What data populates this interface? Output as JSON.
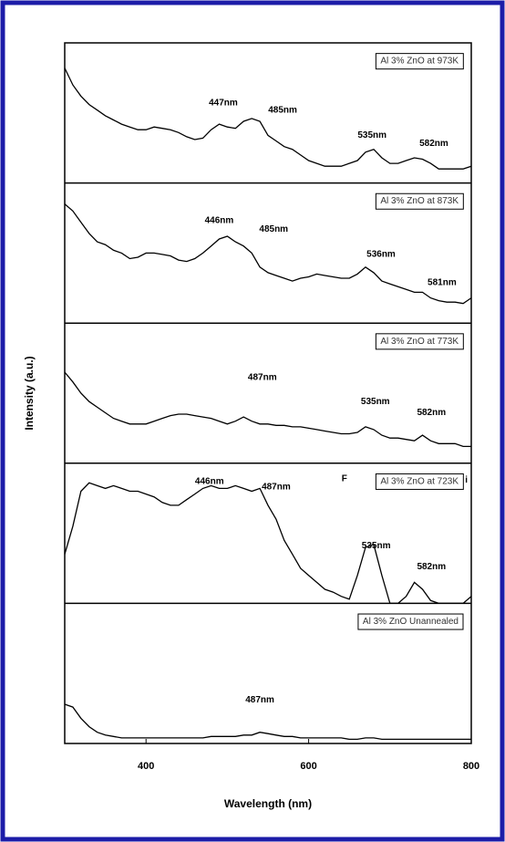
{
  "chart_data": {
    "type": "line",
    "xlabel": "Wavelength (nm)",
    "ylabel": "Intensity (a.u.)",
    "xlim": [
      300,
      800
    ],
    "xticks": [
      400,
      600,
      800
    ],
    "ylim": [
      0,
      100
    ],
    "x": [
      300,
      310,
      320,
      330,
      340,
      350,
      360,
      370,
      380,
      390,
      400,
      410,
      420,
      430,
      440,
      450,
      460,
      470,
      480,
      490,
      500,
      510,
      520,
      530,
      540,
      550,
      560,
      570,
      580,
      590,
      600,
      610,
      620,
      630,
      640,
      650,
      660,
      670,
      680,
      690,
      700,
      710,
      720,
      730,
      740,
      750,
      760,
      770,
      780,
      790,
      800
    ],
    "series": [
      {
        "name": "Al 3% ZnO at 973K",
        "color": "#000000",
        "values": [
          82,
          70,
          62,
          56,
          52,
          48,
          45,
          42,
          40,
          38,
          38,
          40,
          39,
          38,
          36,
          33,
          31,
          32,
          38,
          42,
          40,
          39,
          44,
          46,
          44,
          34,
          30,
          26,
          24,
          20,
          16,
          14,
          12,
          12,
          12,
          14,
          16,
          22,
          24,
          18,
          14,
          14,
          16,
          18,
          17,
          14,
          10,
          10,
          10,
          10,
          12
        ],
        "annotations": [
          {
            "text": "447nm",
            "x": 495,
            "y": 57
          },
          {
            "text": "485nm",
            "x": 568,
            "y": 52
          },
          {
            "text": "535nm",
            "x": 678,
            "y": 34
          },
          {
            "text": "582nm",
            "x": 754,
            "y": 28
          }
        ]
      },
      {
        "name": "Al 3% ZnO at 873K",
        "color": "#000000",
        "values": [
          85,
          80,
          72,
          64,
          58,
          56,
          52,
          50,
          46,
          47,
          50,
          50,
          49,
          48,
          45,
          44,
          46,
          50,
          55,
          60,
          62,
          58,
          55,
          50,
          40,
          36,
          34,
          32,
          30,
          32,
          33,
          35,
          34,
          33,
          32,
          32,
          35,
          40,
          36,
          30,
          28,
          26,
          24,
          22,
          22,
          18,
          16,
          15,
          15,
          14,
          18
        ],
        "annotations": [
          {
            "text": "446nm",
            "x": 490,
            "y": 73
          },
          {
            "text": "485nm",
            "x": 557,
            "y": 67
          },
          {
            "text": "536nm",
            "x": 689,
            "y": 49
          },
          {
            "text": "581nm",
            "x": 764,
            "y": 29
          }
        ]
      },
      {
        "name": "Al 3% ZnO at 773K",
        "color": "#000000",
        "values": [
          65,
          58,
          50,
          44,
          40,
          36,
          32,
          30,
          28,
          28,
          28,
          30,
          32,
          34,
          35,
          35,
          34,
          33,
          32,
          30,
          28,
          30,
          33,
          30,
          28,
          28,
          27,
          27,
          26,
          26,
          25,
          24,
          23,
          22,
          21,
          21,
          22,
          26,
          24,
          20,
          18,
          18,
          17,
          16,
          20,
          16,
          14,
          14,
          14,
          12,
          12
        ],
        "annotations": [
          {
            "text": "487nm",
            "x": 543,
            "y": 61
          },
          {
            "text": "535nm",
            "x": 682,
            "y": 44
          },
          {
            "text": "582nm",
            "x": 751,
            "y": 36
          }
        ]
      },
      {
        "name": "Al 3% ZnO at 723K",
        "color": "#000000",
        "values": [
          35,
          55,
          80,
          86,
          84,
          82,
          84,
          82,
          80,
          80,
          78,
          76,
          72,
          70,
          70,
          74,
          78,
          82,
          84,
          82,
          82,
          84,
          82,
          80,
          82,
          70,
          60,
          45,
          35,
          25,
          20,
          15,
          10,
          8,
          5,
          3,
          20,
          40,
          42,
          20,
          0,
          0,
          5,
          15,
          10,
          2,
          0,
          0,
          0,
          0,
          5
        ],
        "annotations": [
          {
            "text": "446nm",
            "x": 478,
            "y": 87
          },
          {
            "text": "487nm",
            "x": 560,
            "y": 83
          },
          {
            "text": "535nm",
            "x": 683,
            "y": 41
          },
          {
            "text": "582nm",
            "x": 751,
            "y": 26
          },
          {
            "text": "F",
            "x": 644,
            "y": 89
          },
          {
            "text": "i",
            "x": 794,
            "y": 88
          }
        ]
      },
      {
        "name": "Al 3% ZnO Unannealed",
        "color": "#000000",
        "values": [
          28,
          26,
          18,
          12,
          8,
          6,
          5,
          4,
          4,
          4,
          4,
          4,
          4,
          4,
          4,
          4,
          4,
          4,
          5,
          5,
          5,
          5,
          6,
          6,
          8,
          7,
          6,
          5,
          5,
          4,
          4,
          4,
          4,
          4,
          4,
          3,
          3,
          4,
          4,
          3,
          3,
          3,
          3,
          3,
          3,
          3,
          3,
          3,
          3,
          3,
          3
        ],
        "annotations": [
          {
            "text": "487nm",
            "x": 540,
            "y": 31
          }
        ]
      }
    ]
  }
}
